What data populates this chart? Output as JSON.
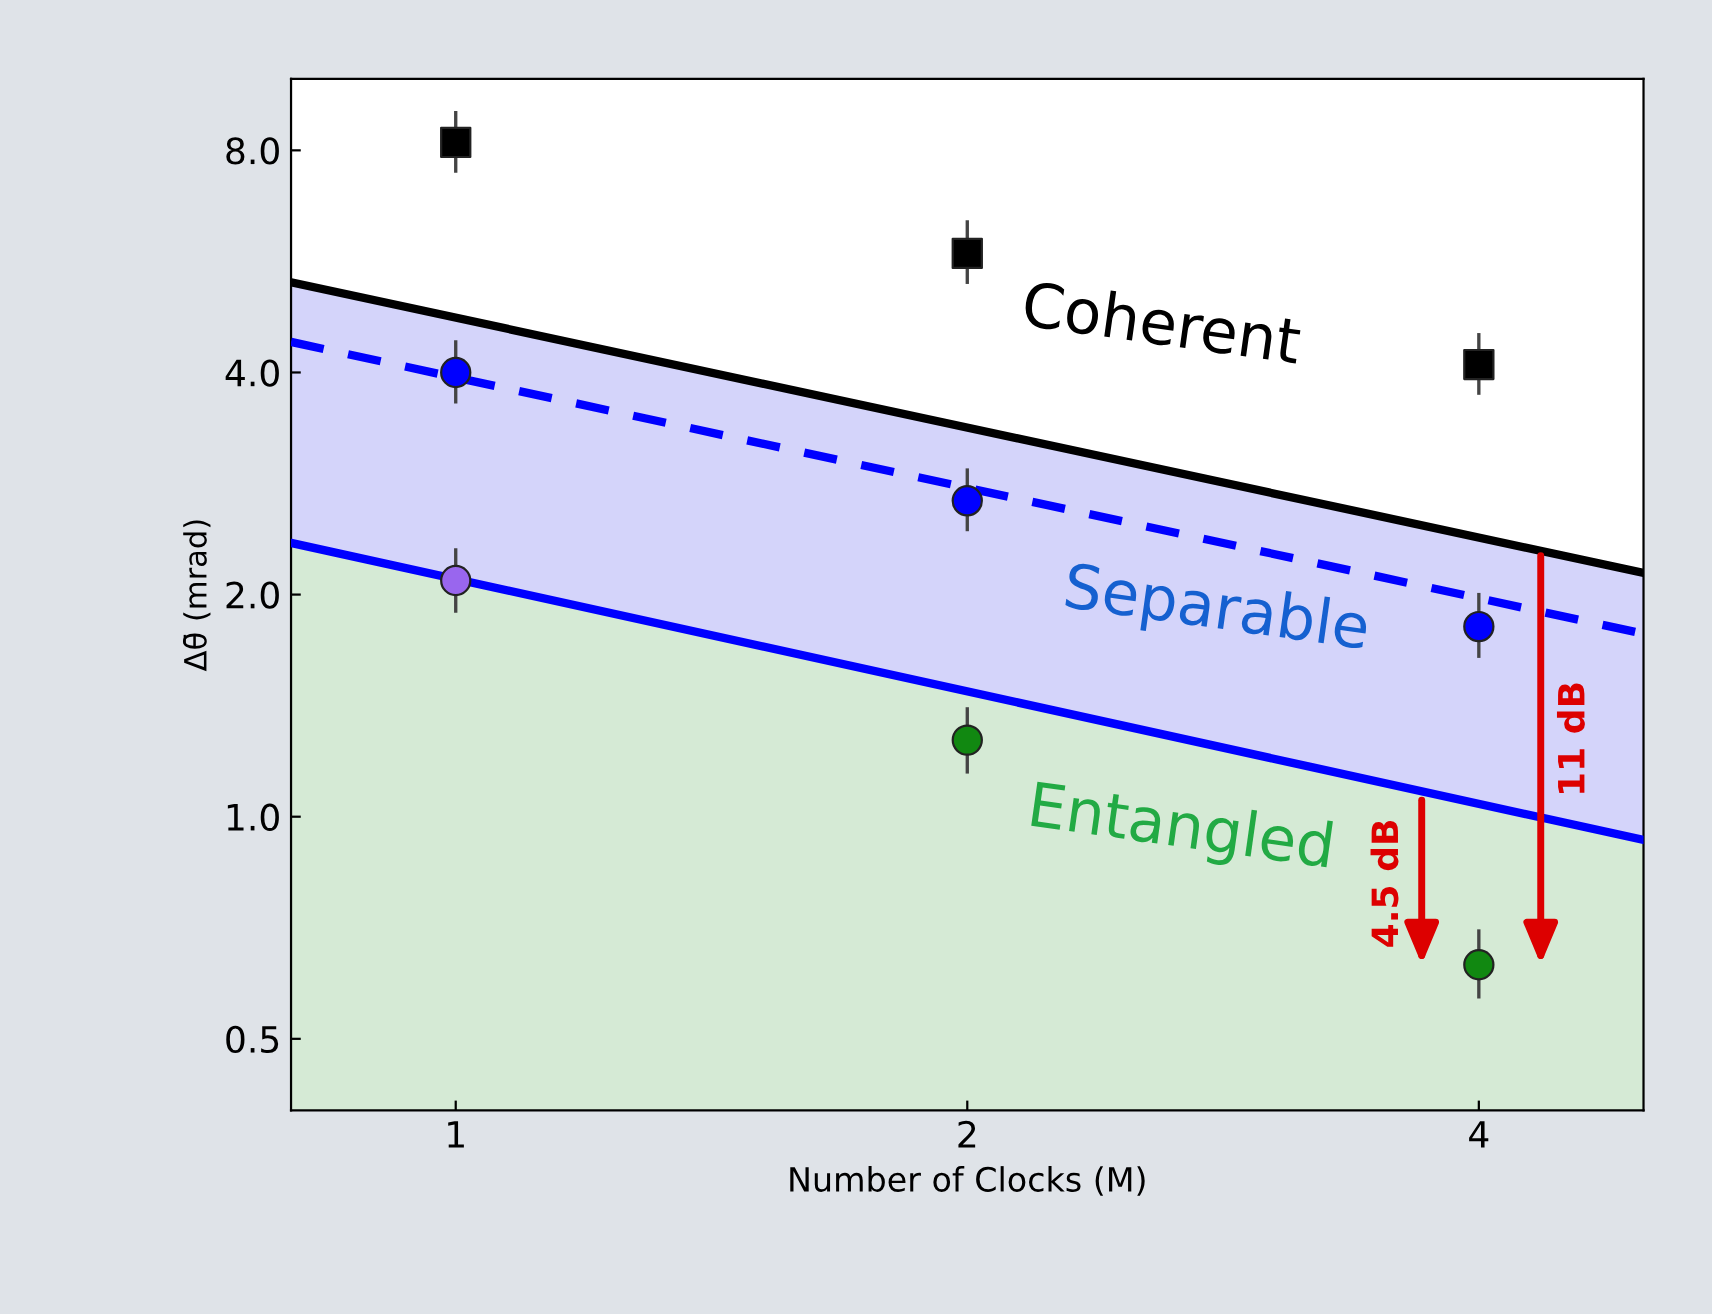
{
  "chart_data": {
    "type": "scatter",
    "xlabel": "Number of Clocks (M)",
    "ylabel": "Δθ̄ (mrad)",
    "log": "xy",
    "xlim": [
      0.8,
      5
    ],
    "ylim": [
      0.4,
      10
    ],
    "xticks": [
      1,
      2,
      4
    ],
    "yticks": [
      {
        "value": 0.5,
        "label": "0.5"
      },
      {
        "value": 1,
        "label": "1.0"
      },
      {
        "value": 2,
        "label": "2.0"
      },
      {
        "value": 4,
        "label": "4.0"
      },
      {
        "value": 8,
        "label": "8.0"
      }
    ],
    "grid": false,
    "legend": false,
    "series": [
      {
        "type": "area",
        "x": [
          0.8,
          5
        ],
        "values": [
          2.35,
          0.93
        ],
        "color": "#0000ff",
        "line_style": "solid"
      },
      {
        "type": "line",
        "x": [
          0.8,
          5
        ],
        "values": [
          5.3,
          2.14
        ],
        "lower": [
          2.35,
          0.93
        ],
        "upper": [
          5.3,
          2.14
        ],
        "color": "#000000",
        "line_style": "solid"
      },
      {
        "type": "line",
        "x": [
          0.8,
          5
        ],
        "values": [
          4.4,
          1.77
        ],
        "color": "#0000ff",
        "line_style": "dashed"
      },
      {
        "x": [
          1,
          2,
          4
        ],
        "values": [
          8.2,
          5.8,
          4.1
        ],
        "errors": [
          [
            7.5,
            9.0
          ],
          [
            5.3,
            6.4
          ],
          [
            3.75,
            4.5
          ]
        ],
        "color": "#000000",
        "marker": "square"
      },
      {
        "x": [
          1,
          2,
          4
        ],
        "values": [
          4.0,
          2.68,
          1.81
        ],
        "errors": [
          [
            3.65,
            4.4
          ],
          [
            2.45,
            2.95
          ],
          [
            1.65,
            2.0
          ]
        ],
        "color": "#0000ff",
        "marker": "circle"
      },
      {
        "x": [
          1
        ],
        "values": [
          2.09
        ],
        "errors": [
          [
            1.9,
            2.3
          ]
        ],
        "color": "#9966ee",
        "marker": "circle"
      },
      {
        "x": [
          2,
          4
        ],
        "values": [
          1.27,
          0.63
        ],
        "errors": [
          [
            1.15,
            1.4
          ],
          [
            0.57,
            0.7
          ]
        ],
        "color": "#118811",
        "marker": "circle"
      }
    ],
    "annotations": [
      "Coherent",
      "Separable",
      "Entangled",
      "4.5 dB",
      "11 dB"
    ]
  }
}
